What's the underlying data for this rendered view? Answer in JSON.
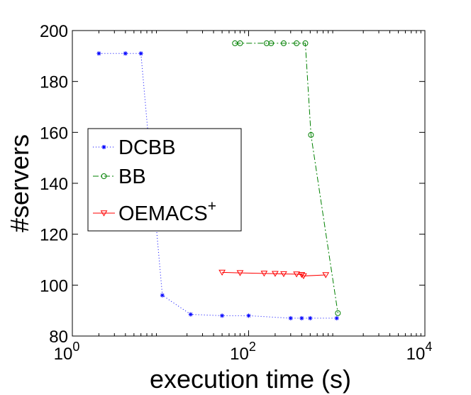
{
  "chart_data": {
    "type": "line",
    "x_scale": "log",
    "xlabel": "execution time (s)",
    "ylabel": "#servers",
    "xlim": [
      1,
      10000
    ],
    "ylim": [
      80,
      200
    ],
    "x_ticks": [
      {
        "value": 1,
        "base": "10",
        "exp": "0"
      },
      {
        "value": 100,
        "base": "10",
        "exp": "2"
      },
      {
        "value": 10000,
        "base": "10",
        "exp": "4"
      }
    ],
    "y_ticks": [
      80,
      100,
      120,
      140,
      160,
      180,
      200
    ],
    "legend_position": "middle-left",
    "series": [
      {
        "name": "DCBB",
        "color": "#0000ff",
        "line_style": "dotted",
        "marker": "asterisk",
        "points": [
          [
            2,
            191
          ],
          [
            4,
            191
          ],
          [
            6,
            191
          ],
          [
            10.5,
            96
          ],
          [
            22,
            88.5
          ],
          [
            50,
            88
          ],
          [
            100,
            88
          ],
          [
            300,
            87
          ],
          [
            400,
            87
          ],
          [
            500,
            87
          ],
          [
            1000,
            87
          ]
        ]
      },
      {
        "name": "BB",
        "color": "#008000",
        "line_style": "dashdot",
        "marker": "circle",
        "points": [
          [
            70,
            195
          ],
          [
            80,
            195
          ],
          [
            160,
            195
          ],
          [
            180,
            195
          ],
          [
            250,
            195
          ],
          [
            350,
            195
          ],
          [
            440,
            195
          ],
          [
            510,
            159
          ],
          [
            1030,
            89
          ]
        ]
      },
      {
        "name": "OEMACS",
        "name_superscript": "+",
        "color": "#ff0000",
        "line_style": "solid",
        "marker": "triangle-down",
        "points": [
          [
            50,
            105
          ],
          [
            80,
            104.8
          ],
          [
            150,
            104.6
          ],
          [
            200,
            104.5
          ],
          [
            250,
            104.4
          ],
          [
            350,
            104.3
          ],
          [
            400,
            104.1
          ],
          [
            420,
            103.6
          ],
          [
            750,
            104
          ]
        ]
      }
    ]
  }
}
